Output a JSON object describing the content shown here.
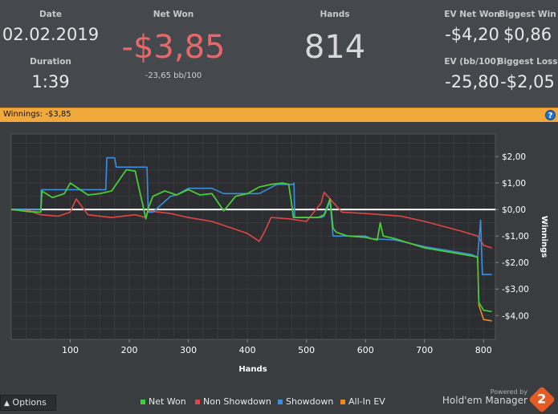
{
  "stats": {
    "date_label": "Date",
    "date_value": "02.02.2019",
    "duration_label": "Duration",
    "duration_value": "1:39",
    "netwon_label": "Net Won",
    "netwon_value": "-$3,85",
    "netwon_sub": "-23,65 bb/100",
    "hands_label": "Hands",
    "hands_value": "814",
    "ev_net_won_label": "EV Net Won",
    "ev_net_won_value": "-$4,20",
    "biggest_win_label": "Biggest Win",
    "biggest_win_value": "$0,86",
    "ev_bb100_label": "EV (bb/100)",
    "ev_bb100_value": "-25,80",
    "biggest_loss_label": "Biggest Loss",
    "biggest_loss_value": "-$2,05"
  },
  "winnings_bar": {
    "label": "Winnings:",
    "value": "-$3,85",
    "help_icon": "?"
  },
  "footer": {
    "options_label": "Options",
    "options_icon": "chevron-up-icon",
    "powered_by": "Powered by",
    "brand": "Hold'em Manager",
    "logo_text": "2"
  },
  "colors": {
    "net_won": "#3ad43a",
    "non_showdown": "#e04646",
    "showdown": "#3a8fe0",
    "allin_ev": "#f08a20",
    "zero_line": "#ffffff",
    "winnings_bar": "#f1a93b"
  },
  "chart_data": {
    "type": "line",
    "xlabel": "Hands",
    "ylabel": "Winnings",
    "xlim": [
      0,
      820
    ],
    "ylim": [
      -4.9,
      2.85
    ],
    "x_ticks": [
      100,
      200,
      300,
      400,
      500,
      600,
      700,
      800
    ],
    "y_ticks": [
      2,
      1,
      0,
      -1,
      -2,
      -3,
      -4
    ],
    "y_tick_labels": [
      "$2,00",
      "$1,00",
      "$0,00",
      "-$1,00",
      "-$2,00",
      "-$3,00",
      "-$4,00"
    ],
    "grid": true,
    "legend": "bottom",
    "series": [
      {
        "name": "Net Won",
        "color": "#3ad43a",
        "x": [
          0,
          30,
          50,
          52,
          70,
          90,
          100,
          110,
          130,
          150,
          170,
          195,
          210,
          228,
          232,
          240,
          260,
          280,
          300,
          320,
          340,
          360,
          380,
          400,
          420,
          440,
          460,
          470,
          475,
          478,
          485,
          500,
          520,
          530,
          540,
          545,
          550,
          570,
          600,
          620,
          625,
          630,
          650,
          700,
          780,
          790,
          792,
          800,
          814
        ],
        "y": [
          0,
          -0.08,
          -0.1,
          0.7,
          0.45,
          0.6,
          1.0,
          0.85,
          0.55,
          0.6,
          0.7,
          1.5,
          1.45,
          -0.35,
          0.05,
          0.5,
          0.7,
          0.55,
          0.75,
          0.55,
          0.6,
          -0.05,
          0.5,
          0.6,
          0.85,
          0.95,
          1.0,
          0.95,
          0.2,
          -0.3,
          -0.3,
          -0.3,
          -0.3,
          -0.2,
          0.4,
          -0.7,
          -0.85,
          -1.0,
          -1.05,
          -1.15,
          -0.5,
          -1.0,
          -1.1,
          -1.45,
          -1.75,
          -1.8,
          -3.5,
          -3.8,
          -3.85
        ]
      },
      {
        "name": "Non Showdown",
        "color": "#e04646",
        "x": [
          0,
          30,
          50,
          80,
          100,
          110,
          130,
          170,
          210,
          228,
          232,
          270,
          300,
          340,
          400,
          420,
          430,
          440,
          470,
          500,
          525,
          530,
          540,
          560,
          600,
          660,
          700,
          760,
          790,
          800,
          814
        ],
        "y": [
          0,
          -0.05,
          -0.2,
          -0.25,
          -0.1,
          0.4,
          -0.2,
          -0.3,
          -0.2,
          -0.3,
          -0.05,
          -0.15,
          -0.3,
          -0.45,
          -0.9,
          -1.2,
          -0.8,
          -0.3,
          -0.35,
          -0.45,
          0.25,
          0.65,
          0.4,
          -0.1,
          -0.15,
          -0.25,
          -0.45,
          -0.8,
          -1.0,
          -1.35,
          -1.45
        ]
      },
      {
        "name": "Showdown",
        "color": "#3a8fe0",
        "x": [
          0,
          50,
          51,
          100,
          150,
          160,
          162,
          175,
          178,
          230,
          232,
          240,
          270,
          280,
          300,
          320,
          340,
          360,
          380,
          420,
          450,
          470,
          478,
          479,
          480,
          525,
          530,
          540,
          545,
          600,
          610,
          650,
          700,
          780,
          790,
          795,
          798,
          814
        ],
        "y": [
          0,
          0,
          0.75,
          0.75,
          0.75,
          0.75,
          1.95,
          1.95,
          1.6,
          1.6,
          -0.1,
          -0.1,
          0.5,
          0.55,
          0.8,
          0.8,
          0.8,
          0.6,
          0.6,
          0.6,
          0.95,
          0.95,
          0.95,
          1.0,
          -0.3,
          -0.3,
          -0.25,
          0.3,
          -1.0,
          -1.0,
          -1.1,
          -1.15,
          -1.4,
          -1.7,
          -1.8,
          -0.4,
          -2.45,
          -2.45
        ]
      },
      {
        "name": "All-In EV",
        "color": "#f08a20",
        "x": [
          0,
          30,
          50,
          52,
          70,
          90,
          100,
          110,
          130,
          150,
          170,
          195,
          210,
          228,
          232,
          240,
          260,
          280,
          300,
          320,
          340,
          360,
          380,
          400,
          420,
          440,
          460,
          470,
          475,
          478,
          485,
          500,
          520,
          530,
          540,
          545,
          550,
          570,
          600,
          620,
          625,
          630,
          650,
          700,
          780,
          790,
          792,
          800,
          814
        ],
        "y": [
          0,
          -0.08,
          -0.1,
          0.7,
          0.45,
          0.6,
          1.0,
          0.85,
          0.55,
          0.6,
          0.7,
          1.5,
          1.45,
          -0.35,
          0.05,
          0.5,
          0.7,
          0.55,
          0.75,
          0.55,
          0.6,
          -0.05,
          0.5,
          0.6,
          0.85,
          0.95,
          1.0,
          0.95,
          0.2,
          -0.3,
          -0.3,
          -0.3,
          -0.3,
          -0.2,
          0.4,
          -0.7,
          -0.85,
          -1.0,
          -1.05,
          -1.15,
          -0.5,
          -1.0,
          -1.1,
          -1.45,
          -1.75,
          -1.8,
          -3.6,
          -4.15,
          -4.2
        ]
      }
    ]
  }
}
